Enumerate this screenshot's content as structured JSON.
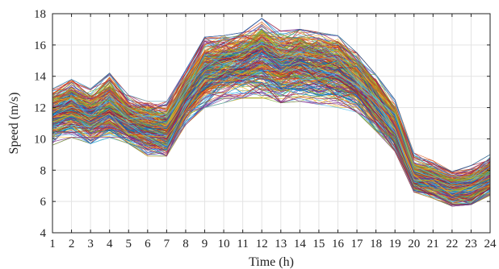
{
  "chart_data": {
    "type": "line",
    "xlabel": "Time (h)",
    "ylabel": "Speed (m/s)",
    "xlim": [
      1,
      24
    ],
    "ylim": [
      4,
      18
    ],
    "x_ticks": [
      1,
      2,
      3,
      4,
      5,
      6,
      7,
      8,
      9,
      10,
      11,
      12,
      13,
      14,
      15,
      16,
      17,
      18,
      19,
      20,
      21,
      22,
      23,
      24
    ],
    "y_ticks": [
      4,
      6,
      8,
      10,
      12,
      14,
      16,
      18
    ],
    "grid": true,
    "legend": "none",
    "series_count": 300,
    "x": [
      1,
      2,
      3,
      4,
      5,
      6,
      7,
      8,
      9,
      10,
      11,
      12,
      13,
      14,
      15,
      16,
      17,
      18,
      19,
      20,
      21,
      22,
      23,
      24
    ],
    "profile_mean": [
      11.5,
      12.0,
      11.4,
      12.0,
      11.1,
      10.7,
      10.5,
      12.6,
      14.2,
      14.6,
      14.8,
      15.2,
      14.6,
      14.8,
      14.6,
      14.4,
      13.6,
      12.3,
      10.7,
      7.6,
      7.3,
      6.8,
      6.9,
      7.6
    ],
    "profile_upper": [
      13.2,
      13.8,
      13.2,
      14.2,
      12.8,
      12.4,
      12.4,
      14.4,
      16.5,
      16.6,
      16.8,
      17.7,
      16.9,
      17.0,
      16.8,
      16.6,
      15.5,
      14.1,
      12.5,
      9.1,
      8.6,
      7.9,
      8.3,
      9.0
    ],
    "profile_lower": [
      9.6,
      10.1,
      9.7,
      10.1,
      9.7,
      8.9,
      8.9,
      10.9,
      12.0,
      12.3,
      12.6,
      12.6,
      12.3,
      12.4,
      12.2,
      12.0,
      11.7,
      10.5,
      9.2,
      6.6,
      6.2,
      5.7,
      5.8,
      6.4
    ],
    "colors": [
      "#0072bd",
      "#d95319",
      "#edb120",
      "#7e2f8e",
      "#77ac30",
      "#4dbeee",
      "#a2142f"
    ]
  }
}
